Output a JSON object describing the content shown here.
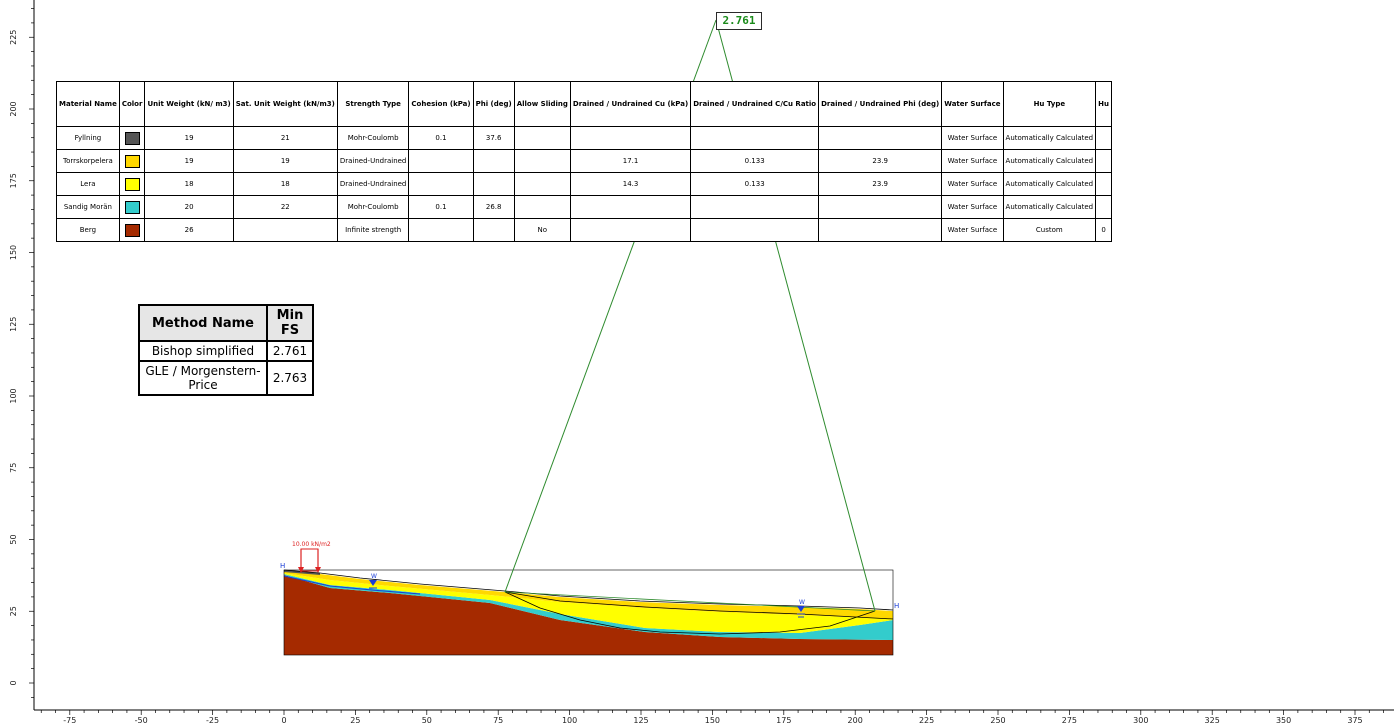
{
  "colors": {
    "fyllning": "#555555",
    "torrskorpelera": "#ffd800",
    "lera": "#ffff00",
    "sandig_moran": "#33cccc",
    "berg": "#a52a00",
    "slip_lines": "#2e8b2e",
    "water": "#1a3dd6",
    "load": "#dd2222"
  },
  "material_table": {
    "headers": [
      "Material Name",
      "Color",
      "Unit Weight (kN/ m3)",
      "Sat. Unit Weight (kN/m3)",
      "Strength Type",
      "Cohesion (kPa)",
      "Phi (deg)",
      "Allow Sliding",
      "Drained / Undrained Cu (kPa)",
      "Drained / Undrained C/Cu Ratio",
      "Drained / Undrained Phi (deg)",
      "Water Surface",
      "Hu Type",
      "Hu"
    ],
    "rows": [
      {
        "name": "Fyllning",
        "color": "#555555",
        "unit_weight": "19",
        "sat_weight": "21",
        "strength_type": "Mohr-Coulomb",
        "cohesion": "0.1",
        "phi": "37.6",
        "allow_sliding": "",
        "cu": "",
        "ratio": "",
        "du_phi": "",
        "water_surface": "Water Surface",
        "hu_type": "Automatically Calculated",
        "hu": ""
      },
      {
        "name": "Torrskorpelera",
        "color": "#ffd800",
        "unit_weight": "19",
        "sat_weight": "19",
        "strength_type": "Drained-Undrained",
        "cohesion": "",
        "phi": "",
        "allow_sliding": "",
        "cu": "17.1",
        "ratio": "0.133",
        "du_phi": "23.9",
        "water_surface": "Water Surface",
        "hu_type": "Automatically Calculated",
        "hu": ""
      },
      {
        "name": "Lera",
        "color": "#ffff00",
        "unit_weight": "18",
        "sat_weight": "18",
        "strength_type": "Drained-Undrained",
        "cohesion": "",
        "phi": "",
        "allow_sliding": "",
        "cu": "14.3",
        "ratio": "0.133",
        "du_phi": "23.9",
        "water_surface": "Water Surface",
        "hu_type": "Automatically Calculated",
        "hu": ""
      },
      {
        "name": "Sandig Morän",
        "color": "#33cccc",
        "unit_weight": "20",
        "sat_weight": "22",
        "strength_type": "Mohr-Coulomb",
        "cohesion": "0.1",
        "phi": "26.8",
        "allow_sliding": "",
        "cu": "",
        "ratio": "",
        "du_phi": "",
        "water_surface": "Water Surface",
        "hu_type": "Automatically Calculated",
        "hu": ""
      },
      {
        "name": "Berg",
        "color": "#a52a00",
        "unit_weight": "26",
        "sat_weight": "",
        "strength_type": "Infinite strength",
        "cohesion": "",
        "phi": "",
        "allow_sliding": "No",
        "cu": "",
        "ratio": "",
        "du_phi": "",
        "water_surface": "Water Surface",
        "hu_type": "Custom",
        "hu": "0"
      }
    ]
  },
  "fs_table": {
    "headers": [
      "Method Name",
      "Min FS"
    ],
    "rows": [
      {
        "method": "Bishop simplified",
        "fs": "2.761"
      },
      {
        "method": "GLE / Morgenstern-Price",
        "fs": "2.763"
      }
    ]
  },
  "fs_badge": "2.761",
  "load_label": "10.00 kN/m2",
  "water_markers": [
    "W",
    "W"
  ],
  "boundary_markers": [
    "H",
    "H"
  ],
  "x_ticks": [
    "-75",
    "-50",
    "-25",
    "0",
    "25",
    "50",
    "75",
    "100",
    "125",
    "150",
    "175",
    "200",
    "225",
    "250",
    "275",
    "300",
    "325",
    "350",
    "375"
  ],
  "y_ticks": [
    "0",
    "25",
    "50",
    "75",
    "100",
    "125",
    "150",
    "175",
    "200",
    "225"
  ]
}
